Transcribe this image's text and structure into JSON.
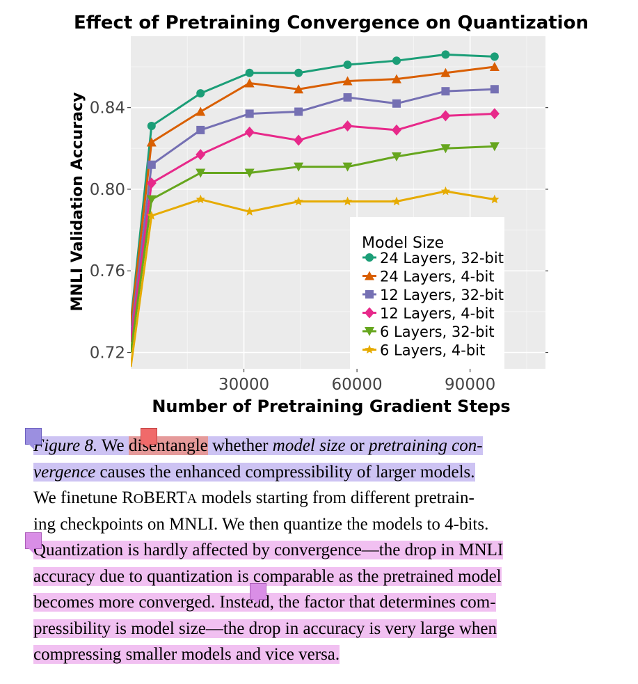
{
  "chart_data": {
    "type": "line",
    "title": "Effect of Pretraining Convergence on Quantization",
    "xlabel": "Number of Pretraining Gradient Steps",
    "ylabel": "MNLI Validation Accuracy",
    "xlim": [
      0,
      110000
    ],
    "ylim": [
      0.712,
      0.875
    ],
    "xticks": [
      30000,
      60000,
      90000
    ],
    "xtick_labels": [
      "30000",
      "60000",
      "90000"
    ],
    "yticks": [
      0.72,
      0.76,
      0.8,
      0.84
    ],
    "ytick_labels": [
      "0.72",
      "0.76",
      "0.80",
      "0.84"
    ],
    "grid": true,
    "legend_title": "Model Size",
    "legend_position": "bottom-right",
    "x": [
      0,
      5500,
      18500,
      31500,
      44500,
      57500,
      70500,
      83500,
      96500
    ],
    "series": [
      {
        "name": "24 Layers, 32-bit",
        "color": "#1b9e77",
        "marker": "circle",
        "values": [
          0.735,
          0.831,
          0.847,
          0.857,
          0.857,
          0.861,
          0.863,
          0.866,
          0.865
        ]
      },
      {
        "name": "24 Layers, 4-bit",
        "color": "#d95f02",
        "marker": "triangle-up",
        "values": [
          0.733,
          0.823,
          0.838,
          0.852,
          0.849,
          0.853,
          0.854,
          0.857,
          0.86
        ]
      },
      {
        "name": "12 Layers, 32-bit",
        "color": "#7570b3",
        "marker": "square",
        "values": [
          0.728,
          0.812,
          0.829,
          0.837,
          0.838,
          0.845,
          0.842,
          0.848,
          0.849
        ]
      },
      {
        "name": "12 Layers, 4-bit",
        "color": "#e7298a",
        "marker": "diamond",
        "values": [
          0.725,
          0.803,
          0.817,
          0.828,
          0.824,
          0.831,
          0.829,
          0.836,
          0.837
        ]
      },
      {
        "name": "6 Layers, 32-bit",
        "color": "#66a61e",
        "marker": "triangle-down",
        "values": [
          0.72,
          0.795,
          0.808,
          0.808,
          0.811,
          0.811,
          0.816,
          0.82,
          0.821
        ]
      },
      {
        "name": "6 Layers, 4-bit",
        "color": "#e6ab02",
        "marker": "star",
        "values": [
          0.713,
          0.787,
          0.795,
          0.789,
          0.794,
          0.794,
          0.794,
          0.799,
          0.795
        ]
      }
    ]
  },
  "caption": {
    "figure_label": "Figure 8.",
    "seg_we": " We ",
    "seg_disentangle": "disentangle",
    "seg_whether": " whether ",
    "seg_model_size": "model size",
    "seg_or": " or ",
    "seg_pretraining_con": "pretraining con-",
    "seg_vergence": "vergence",
    "seg_causes": " causes the enhanced compressibility of larger models.",
    "seg_finetune_a": "We finetune ",
    "seg_roberta_r": "R",
    "seg_roberta_o": "O",
    "seg_roberta_bert": "BERT",
    "seg_roberta_a": "A",
    "seg_finetune_b": " models starting from different pretrain-",
    "seg_checkpoints": "ing checkpoints on MNLI. We then quantize the models to 4-bits.",
    "seg_quant1": "Quantization is hardly affected by convergence—the drop in MNLI",
    "seg_quant2": "accuracy due to quantization is comparable as the pretrained model",
    "seg_quant3": "becomes more converged.",
    "seg_instead": " Instead, the factor that determines com-",
    "seg_press1": "pressibility is model size—the drop in accuracy is very large when",
    "seg_press2": "compressing smaller models and vice versa."
  },
  "colors": {
    "highlight_purple": "#cdc3f3",
    "highlight_pink": "#f1c0f1",
    "highlight_red": "#e59a9a",
    "note_purple": "#9b8fe0",
    "note_red": "#f06a6a",
    "note_pink": "#d98ee6"
  }
}
